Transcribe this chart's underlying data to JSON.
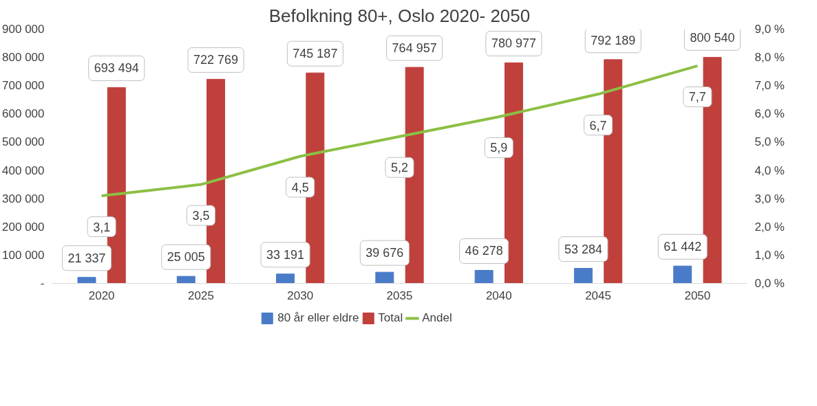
{
  "chart_data": {
    "type": "bar",
    "title": "Befolkning 80+, Oslo 2020- 2050",
    "categories": [
      "2020",
      "2025",
      "2030",
      "2035",
      "2040",
      "2045",
      "2050"
    ],
    "series": [
      {
        "name": "80 år eller eldre",
        "color": "#4a7bc8",
        "values": [
          21337,
          25005,
          33191,
          39676,
          46278,
          53284,
          61442
        ],
        "value_labels": [
          "21 337",
          "25 005",
          "33 191",
          "39 676",
          "46 278",
          "53 284",
          "61 442"
        ]
      },
      {
        "name": "Total",
        "color": "#c0403c",
        "values": [
          693494,
          722769,
          745187,
          764957,
          780977,
          792189,
          800540
        ],
        "value_labels": [
          "693 494",
          "722 769",
          "745 187",
          "764 957",
          "780 977",
          "792 189",
          "800 540"
        ]
      },
      {
        "name": "Andel",
        "type": "line",
        "axis": "y2",
        "color": "#8cbf44",
        "values": [
          3.1,
          3.5,
          4.5,
          5.2,
          5.9,
          6.7,
          7.7
        ],
        "value_labels": [
          "3,1",
          "3,5",
          "4,5",
          "5,2",
          "5,9",
          "6,7",
          "7,7"
        ]
      }
    ],
    "ylim": [
      0,
      900000
    ],
    "yticks": [
      {
        "value": 0,
        "label": "-"
      },
      {
        "value": 100000,
        "label": "100 000"
      },
      {
        "value": 200000,
        "label": "200 000"
      },
      {
        "value": 300000,
        "label": "300 000"
      },
      {
        "value": 400000,
        "label": "400 000"
      },
      {
        "value": 500000,
        "label": "500 000"
      },
      {
        "value": 600000,
        "label": "600 000"
      },
      {
        "value": 700000,
        "label": "700 000"
      },
      {
        "value": 800000,
        "label": "800 000"
      },
      {
        "value": 900000,
        "label": "900 000"
      }
    ],
    "y2lim": [
      0,
      9
    ],
    "y2ticks": [
      {
        "value": 0,
        "label": "0,0 %"
      },
      {
        "value": 1,
        "label": "1,0 %"
      },
      {
        "value": 2,
        "label": "2,0 %"
      },
      {
        "value": 3,
        "label": "3,0 %"
      },
      {
        "value": 4,
        "label": "4,0 %"
      },
      {
        "value": 5,
        "label": "5,0 %"
      },
      {
        "value": 6,
        "label": "6,0 %"
      },
      {
        "value": 7,
        "label": "7,0 %"
      },
      {
        "value": 8,
        "label": "8,0 %"
      },
      {
        "value": 9,
        "label": "9,0 %"
      }
    ],
    "grid": false,
    "legend": "bottom"
  }
}
